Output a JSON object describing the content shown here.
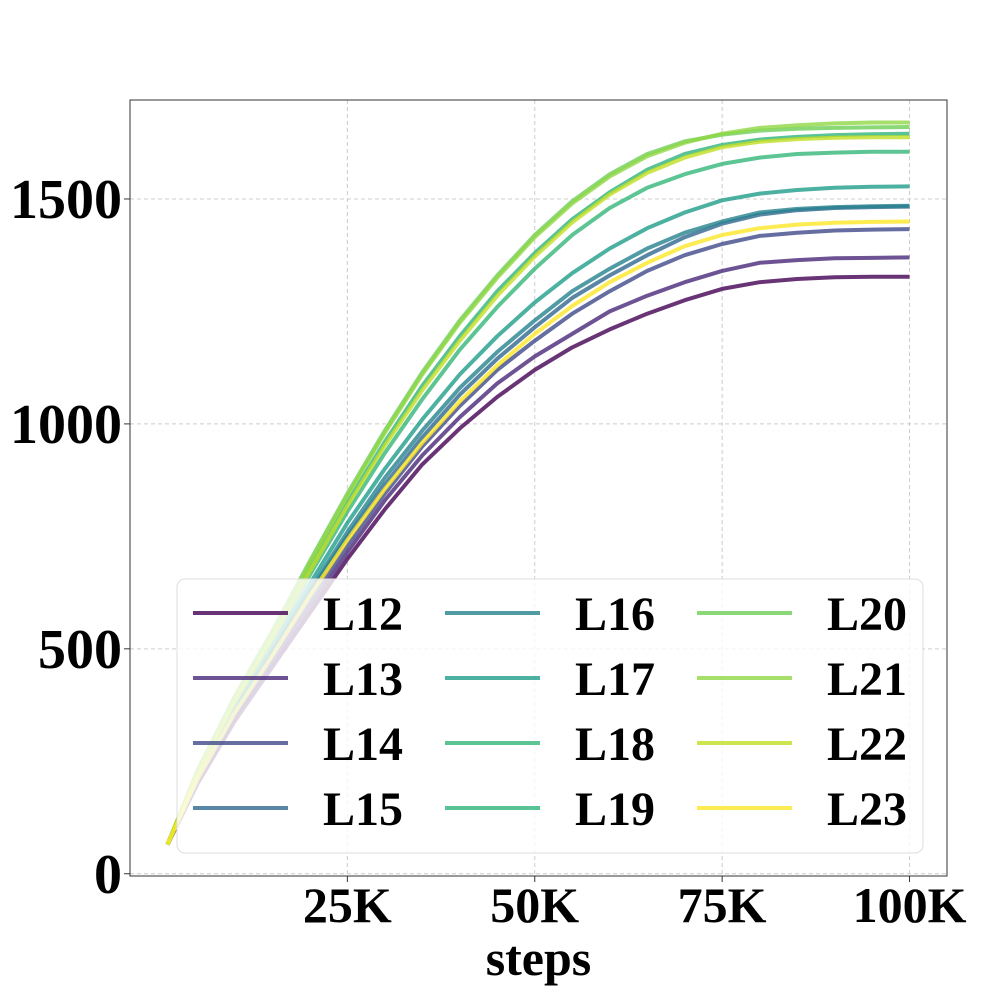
{
  "chart_data": {
    "type": "line",
    "title": "",
    "xlabel": "steps",
    "ylabel": "",
    "xlim": [
      -4000,
      105000
    ],
    "ylim": [
      -5,
      1720
    ],
    "x_ticks": [
      25000,
      50000,
      75000,
      100000
    ],
    "x_tick_labels": [
      "25K",
      "50K",
      "75K",
      "100K"
    ],
    "y_ticks": [
      0,
      500,
      1000,
      1500
    ],
    "y_tick_labels": [
      "0",
      "500",
      "1000",
      "1500"
    ],
    "grid": true,
    "legend": {
      "placement": "lower-right",
      "columns": 3
    },
    "x": [
      1000,
      5000,
      10000,
      15000,
      20000,
      25000,
      30000,
      35000,
      40000,
      45000,
      50000,
      55000,
      60000,
      65000,
      70000,
      75000,
      80000,
      85000,
      90000,
      95000,
      100000
    ],
    "series": [
      {
        "name": "L12",
        "color": "#440154",
        "values": [
          65,
          200,
          340,
          460,
          580,
          700,
          810,
          910,
          990,
          1060,
          1120,
          1170,
          1210,
          1245,
          1275,
          1300,
          1315,
          1322,
          1326,
          1327,
          1327
        ]
      },
      {
        "name": "L13",
        "color": "#482878",
        "values": [
          65,
          205,
          350,
          470,
          595,
          715,
          830,
          930,
          1015,
          1090,
          1150,
          1200,
          1250,
          1285,
          1315,
          1340,
          1358,
          1364,
          1368,
          1369,
          1370
        ]
      },
      {
        "name": "L14",
        "color": "#3e4989",
        "values": [
          65,
          210,
          355,
          480,
          610,
          730,
          845,
          950,
          1040,
          1120,
          1185,
          1245,
          1295,
          1340,
          1375,
          1400,
          1418,
          1425,
          1430,
          1432,
          1433
        ]
      },
      {
        "name": "L15",
        "color": "#31688e",
        "values": [
          65,
          212,
          360,
          490,
          625,
          750,
          865,
          970,
          1065,
          1145,
          1215,
          1280,
          1330,
          1375,
          1415,
          1445,
          1465,
          1475,
          1480,
          1482,
          1483
        ]
      },
      {
        "name": "L16",
        "color": "#26828e",
        "values": [
          65,
          214,
          365,
          495,
          630,
          760,
          880,
          985,
          1080,
          1160,
          1230,
          1295,
          1345,
          1390,
          1425,
          1450,
          1470,
          1478,
          1482,
          1484,
          1485
        ]
      },
      {
        "name": "L17",
        "color": "#1f9e89",
        "values": [
          65,
          218,
          372,
          505,
          645,
          780,
          900,
          1010,
          1110,
          1195,
          1270,
          1335,
          1390,
          1435,
          1470,
          1497,
          1512,
          1520,
          1525,
          1527,
          1528
        ]
      },
      {
        "name": "L18",
        "color": "#35b779",
        "values": [
          65,
          222,
          380,
          520,
          665,
          805,
          935,
          1055,
          1165,
          1260,
          1345,
          1420,
          1480,
          1525,
          1555,
          1578,
          1592,
          1600,
          1603,
          1605,
          1605
        ]
      },
      {
        "name": "L19",
        "color": "#2fb47c",
        "values": [
          65,
          225,
          385,
          528,
          678,
          825,
          960,
          1085,
          1195,
          1295,
          1380,
          1455,
          1515,
          1565,
          1600,
          1620,
          1632,
          1638,
          1642,
          1644,
          1645
        ]
      },
      {
        "name": "L20",
        "color": "#6ece58",
        "values": [
          65,
          230,
          395,
          540,
          695,
          845,
          985,
          1115,
          1230,
          1330,
          1420,
          1495,
          1555,
          1600,
          1628,
          1643,
          1652,
          1656,
          1658,
          1659,
          1660
        ]
      },
      {
        "name": "L21",
        "color": "#90d743",
        "values": [
          65,
          228,
          392,
          535,
          690,
          840,
          980,
          1110,
          1225,
          1325,
          1415,
          1490,
          1550,
          1595,
          1625,
          1645,
          1658,
          1664,
          1668,
          1670,
          1670
        ]
      },
      {
        "name": "L22",
        "color": "#c2df23",
        "values": [
          65,
          224,
          383,
          525,
          672,
          818,
          952,
          1075,
          1185,
          1285,
          1372,
          1448,
          1510,
          1558,
          1592,
          1615,
          1627,
          1633,
          1636,
          1637,
          1637
        ]
      },
      {
        "name": "L23",
        "color": "#fde725",
        "values": [
          65,
          210,
          358,
          485,
          618,
          742,
          855,
          958,
          1050,
          1130,
          1200,
          1262,
          1315,
          1358,
          1395,
          1420,
          1435,
          1443,
          1447,
          1449,
          1450
        ]
      }
    ]
  }
}
